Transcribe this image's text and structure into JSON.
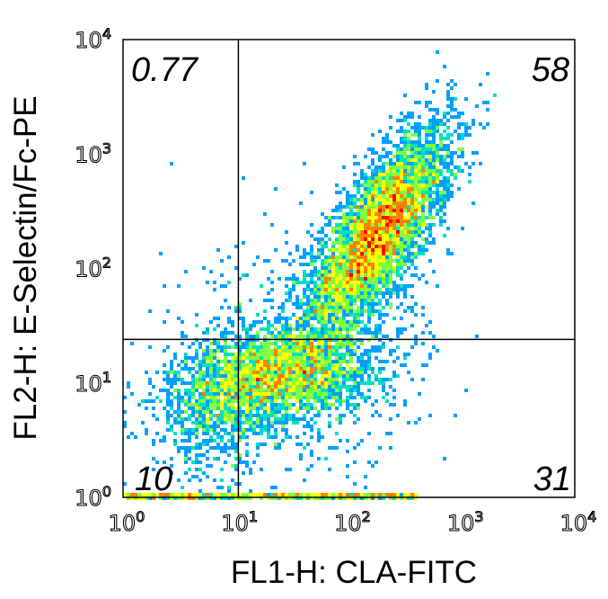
{
  "chart_data": {
    "type": "scatter",
    "style": "density-pseudocolor",
    "xlabel": "FL1-H: CLA-FITC",
    "ylabel": "FL2-H: E-Selectin/Fc-PE",
    "xscale": "log",
    "yscale": "log",
    "xlim": [
      1,
      10000
    ],
    "ylim": [
      1,
      10000
    ],
    "x_ticks": [
      {
        "base": "10",
        "exp": "0"
      },
      {
        "base": "10",
        "exp": "1"
      },
      {
        "base": "10",
        "exp": "2"
      },
      {
        "base": "10",
        "exp": "3"
      },
      {
        "base": "10",
        "exp": "4"
      }
    ],
    "y_ticks": [
      {
        "base": "10",
        "exp": "0"
      },
      {
        "base": "10",
        "exp": "1"
      },
      {
        "base": "10",
        "exp": "2"
      },
      {
        "base": "10",
        "exp": "3"
      },
      {
        "base": "10",
        "exp": "4"
      }
    ],
    "quadrant_gates": {
      "x": 10.5,
      "y": 24
    },
    "quadrants": {
      "upper_left": "0.77",
      "upper_right": "58",
      "lower_left": "10",
      "lower_right": "31"
    },
    "populations": [
      {
        "name": "main-diagonal",
        "x_center": 180,
        "y_center": 200,
        "x_spread_dex": 0.32,
        "y_spread_dex": 0.45,
        "corr": 0.75,
        "fraction": 0.55
      },
      {
        "name": "low-band",
        "x_center": 25,
        "y_center": 12,
        "x_spread_dex": 0.42,
        "y_spread_dex": 0.22,
        "corr": 0.3,
        "fraction": 0.3
      },
      {
        "name": "low-left",
        "x_center": 7,
        "y_center": 6,
        "x_spread_dex": 0.3,
        "y_spread_dex": 0.3,
        "corr": 0.2,
        "fraction": 0.08
      },
      {
        "name": "scatter-background",
        "x_center": 40,
        "y_center": 15,
        "x_spread_dex": 0.55,
        "y_spread_dex": 0.55,
        "corr": 0.0,
        "fraction": 0.07
      }
    ],
    "axis_pileup": {
      "x_from": 1,
      "x_to": 400,
      "y": 1
    },
    "colormap": [
      "#0000ff",
      "#00a0ff",
      "#00e0c0",
      "#80ff40",
      "#ffff00",
      "#ff8000",
      "#ff0000"
    ],
    "gate_line_color": "#000000",
    "grid": false
  }
}
